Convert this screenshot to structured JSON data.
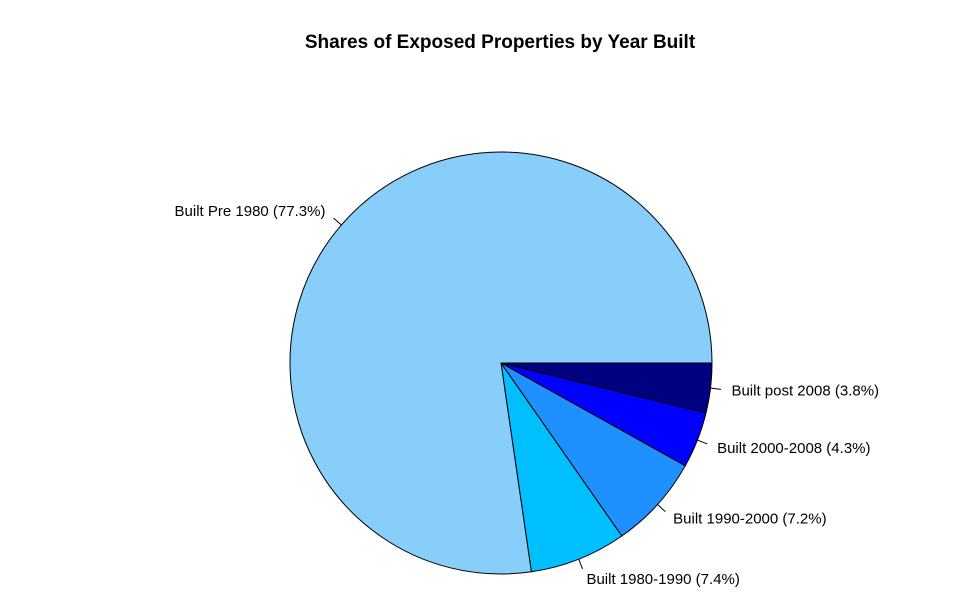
{
  "chart_data": {
    "type": "pie",
    "title": "Shares of Exposed Properties by Year Built",
    "slices": [
      {
        "label": "Built post 2008 (3.8%)",
        "value": 3.8,
        "color": "#000080"
      },
      {
        "label": "Built 2000-2008 (4.3%)",
        "value": 4.3,
        "color": "#0000FF"
      },
      {
        "label": "Built 1990-2000 (7.2%)",
        "value": 7.2,
        "color": "#1E90FF"
      },
      {
        "label": "Built 1980-1990 (7.4%)",
        "value": 7.4,
        "color": "#00BFFF"
      },
      {
        "label": "Built Pre 1980 (77.3%)",
        "value": 77.3,
        "color": "#87CEFA"
      }
    ],
    "direction": "clockwise",
    "start_angle_deg": 0,
    "legend": "none"
  }
}
